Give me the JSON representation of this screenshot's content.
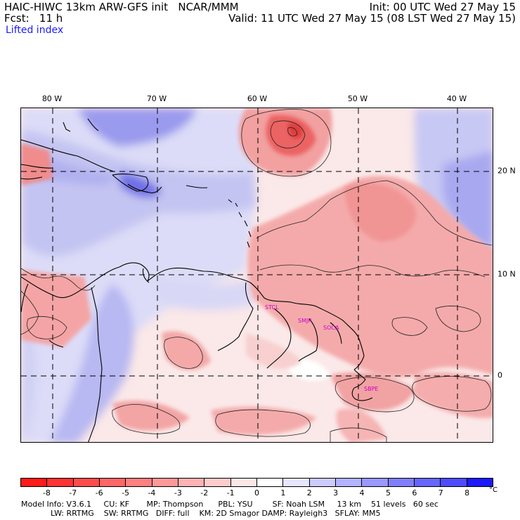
{
  "header": {
    "line1_left": "HAIC-HIWC 13km ARW-GFS init   NCAR/MMM",
    "line2_left": "Fcst:   11 h",
    "line1_right": "Init: 00 UTC Wed 27 May 15",
    "line2_right": "Valid: 11 UTC Wed 27 May 15 (08 LST Wed 27 May 15)",
    "field": "Lifted index"
  },
  "axes": {
    "lon_labels": [
      "80 W",
      "70 W",
      "60 W",
      "50 W",
      "40 W"
    ],
    "lat_labels": [
      "20 N",
      "10 N",
      "0"
    ]
  },
  "stations": [
    "STCL",
    "SMJP",
    "SOCA",
    "SBPE"
  ],
  "colorbar": {
    "labels": [
      "-8",
      "-7",
      "-6",
      "-5",
      "-4",
      "-3",
      "-2",
      "-1",
      "0",
      "1",
      "2",
      "3",
      "4",
      "5",
      "6",
      "7",
      "8"
    ],
    "unit": "°C",
    "colors": [
      "#ff1a1a",
      "#ff3333",
      "#ff4d4d",
      "#ff6666",
      "#ff8080",
      "#ff9999",
      "#ffb3b3",
      "#ffcccc",
      "#ffe6e6",
      "#ffffff",
      "#e6e6ff",
      "#ccccff",
      "#b3b3ff",
      "#9999ff",
      "#8080ff",
      "#6666ff",
      "#4d4dff",
      "#1a1aff"
    ]
  },
  "footer": {
    "line1": "Model Info: V3.6.1     CU: KF       MP: Thompson      PBL: YSU        SF: Noah LSM     13 km    51 levels   60 sec",
    "line2": "            LW: RRTMG    SW: RRTMG   DIFF: full    KM: 2D Smagor DAMP: Rayleigh3   SFLAY: MM5"
  }
}
